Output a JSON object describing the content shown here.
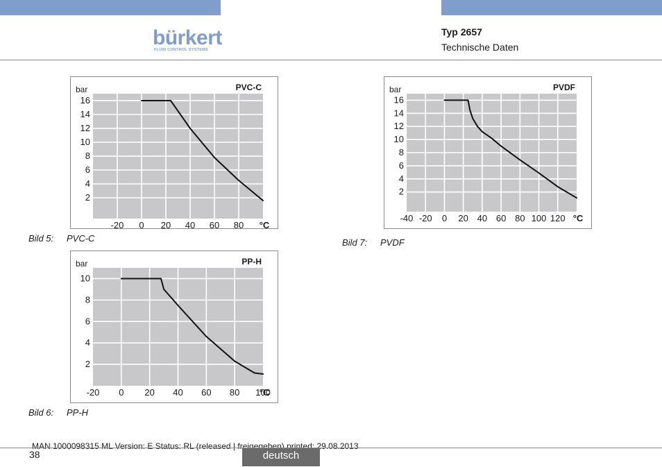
{
  "header": {
    "brand": "bürkert",
    "brand_tagline": "FLUID CONTROL SYSTEMS",
    "doc_type": "Typ 2657",
    "section": "Technische Daten",
    "accent_color": "#7f9ecb"
  },
  "figures": {
    "pvc_c": {
      "label": "Bild 5:",
      "title": "PVC-C"
    },
    "pp_h": {
      "label": "Bild 6:",
      "title": "PP-H"
    },
    "pvdf": {
      "label": "Bild 7:",
      "title": "PVDF"
    }
  },
  "chart_data": [
    {
      "id": "pvc_c",
      "type": "line",
      "title": "PVC-C",
      "xlabel": "°C",
      "ylabel": "bar",
      "x_tick_labels": [
        -20,
        0,
        20,
        40,
        60,
        80
      ],
      "y_tick_labels": [
        2,
        4,
        6,
        8,
        10,
        12,
        14,
        16
      ],
      "xlim": [
        -40,
        100
      ],
      "ylim": [
        -1,
        17
      ],
      "grid": true,
      "series": [
        {
          "name": "PVC-C",
          "x": [
            0,
            24,
            40,
            60,
            80,
            100
          ],
          "y": [
            16,
            16,
            12,
            7.8,
            4.5,
            1.6
          ]
        }
      ]
    },
    {
      "id": "pp_h",
      "type": "line",
      "title": "PP-H",
      "xlabel": "°C",
      "ylabel": "bar",
      "x_tick_labels": [
        -20,
        0,
        20,
        40,
        60,
        80,
        100
      ],
      "y_tick_labels": [
        2,
        4,
        6,
        8,
        10
      ],
      "xlim": [
        -20,
        100
      ],
      "ylim": [
        0,
        11
      ],
      "grid": true,
      "series": [
        {
          "name": "PP-H",
          "x": [
            0,
            28,
            30,
            40,
            60,
            80,
            94,
            100
          ],
          "y": [
            10,
            10,
            9,
            7.5,
            4.6,
            2.3,
            1.2,
            1.1
          ]
        }
      ]
    },
    {
      "id": "pvdf",
      "type": "line",
      "title": "PVDF",
      "xlabel": "°C",
      "ylabel": "bar",
      "x_tick_labels": [
        -40,
        -20,
        0,
        20,
        40,
        60,
        80,
        100,
        120
      ],
      "y_tick_labels": [
        2,
        4,
        6,
        8,
        10,
        12,
        14,
        16
      ],
      "xlim": [
        -40,
        140
      ],
      "ylim": [
        -1,
        17
      ],
      "grid": true,
      "series": [
        {
          "name": "PVDF",
          "x": [
            0,
            25,
            27,
            30,
            35,
            40,
            50,
            60,
            80,
            100,
            120,
            140
          ],
          "y": [
            16,
            16,
            14.5,
            13.2,
            12,
            11.2,
            10.2,
            9,
            6.9,
            4.9,
            2.8,
            1.1
          ]
        }
      ]
    }
  ],
  "footer": {
    "meta": "MAN  1000098315  ML  Version: E Status: RL (released | freigegeben)  printed: 29.08.2013",
    "page": "38",
    "language": "deutsch"
  }
}
